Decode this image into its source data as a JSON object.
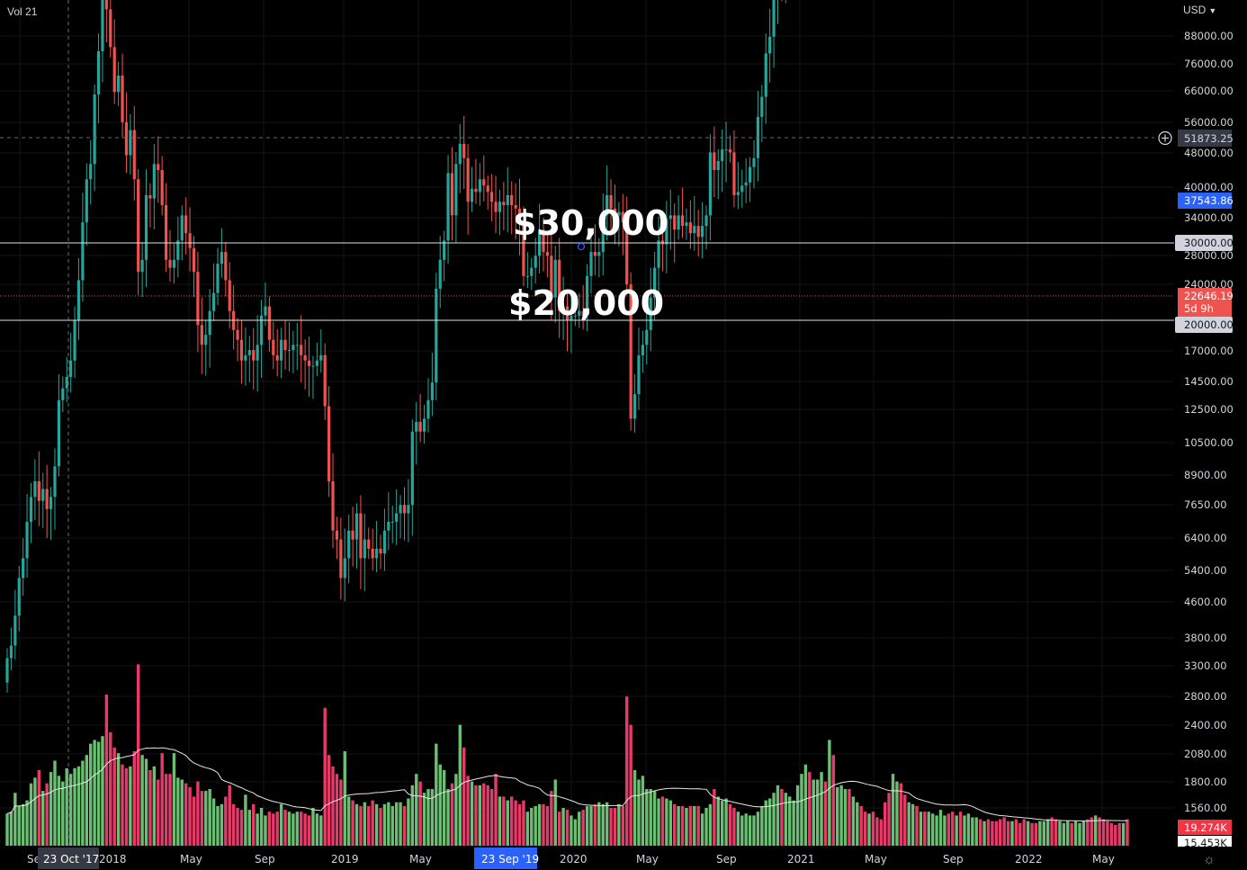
{
  "header": {
    "indicator_label": "Vol 21",
    "currency": "USD",
    "currency_chevron_icon": "chevron-down-icon"
  },
  "price_axis_labels": [
    "88000.00",
    "76000.00",
    "66000.00",
    "56000.00",
    "48000.00",
    "40000.00",
    "34000.00",
    "28000.00",
    "24000.00",
    "17000.00",
    "14500.00",
    "12500.00",
    "10500.00",
    "8900.00",
    "7650.00",
    "6400.00",
    "5400.00",
    "4600.00",
    "3800.00",
    "3300.00",
    "2800.00",
    "2400.00",
    "2080.00",
    "1800.00",
    "1560.00"
  ],
  "price_tags": {
    "crosshair": {
      "value": "51873.25",
      "color": "#363a45"
    },
    "prev_close": {
      "value": "37543.86",
      "color": "#2962ff"
    },
    "line_30k": {
      "value": "30000.00",
      "color": "#d1d4dc"
    },
    "last": {
      "value": "22646.19",
      "countdown": "5d 9h",
      "color": "#ef5350"
    },
    "line_20k": {
      "value": "20000.00",
      "color": "#d1d4dc"
    },
    "volume_last": {
      "value": "19.274K",
      "color": "#f23645"
    },
    "volume_ma": {
      "value": "15.453K",
      "color": "#ffffff"
    }
  },
  "annotations": {
    "upper": "$30,000",
    "lower": "$20,000"
  },
  "time_axis_labels": [
    {
      "label": "Se"
    },
    {
      "label": "2018"
    },
    {
      "label": "May"
    },
    {
      "label": "Sep"
    },
    {
      "label": "2019"
    },
    {
      "label": "May"
    },
    {
      "label": "2020"
    },
    {
      "label": "May"
    },
    {
      "label": "Sep"
    },
    {
      "label": "2021"
    },
    {
      "label": "May"
    },
    {
      "label": "Sep"
    },
    {
      "label": "2022"
    },
    {
      "label": "May"
    }
  ],
  "crosshair_time_label": "23 Oct '17",
  "highlight_time_label": "23 Sep '19",
  "colors": {
    "up": "#26a69a",
    "down": "#ef5350",
    "vol_up": "#6bbf73",
    "vol_down": "#e8396b",
    "background": "#000000"
  },
  "chart_data": {
    "type": "candlestick",
    "interval": "1W",
    "y_scale": "log",
    "ylim": [
      1450,
      100000
    ],
    "horizontal_lines": [
      30000,
      20000
    ],
    "series": [
      {
        "name": "",
        "close": [
          2600,
          2700,
          2950,
          3300,
          3500,
          3900,
          4200,
          4400,
          4150,
          4300,
          4050,
          4200,
          4600,
          5600,
          5800,
          6000,
          6300,
          7100,
          8000,
          9500,
          10800,
          11300,
          13900,
          15800,
          18500,
          17900,
          16000,
          14000,
          14700,
          12800,
          11600,
          12500,
          10800,
          8200,
          8500,
          10300,
          10200,
          11300,
          11100,
          10000,
          8500,
          8300,
          8500,
          9000,
          9700,
          9200,
          8800,
          8200,
          7000,
          6600,
          6800,
          7300,
          7700,
          8400,
          8700,
          8000,
          7300,
          6900,
          6700,
          6300,
          6400,
          6500,
          6300,
          6600,
          7200,
          7400,
          6700,
          6400,
          6300,
          6700,
          6500,
          6500,
          6600,
          6600,
          6400,
          6300,
          6200,
          6200,
          6300,
          6400,
          5500,
          4400,
          3800,
          3700,
          3300,
          3500,
          3800,
          3700,
          4000,
          3500,
          3700,
          3600,
          3500,
          3600,
          3550,
          3800,
          3900,
          3900,
          4000,
          4100,
          4000,
          4100,
          5100,
          5250,
          5100,
          5300,
          5600,
          5900,
          7800,
          8500,
          9000,
          11000,
          9700,
          11300,
          12000,
          11500,
          10100,
          10500,
          10400,
          10800,
          10600,
          10400,
          10100,
          9800,
          10100,
          10000,
          10300,
          10000,
          9900,
          9500,
          8100,
          8100,
          8300,
          8600,
          9300,
          8700,
          8600,
          7600,
          8500,
          7300,
          7400,
          7100,
          7200,
          7200,
          7300,
          7200,
          8100,
          8700,
          8600,
          8700,
          9700,
          10300,
          9900,
          9700,
          9800,
          9500,
          7900,
          5300,
          5700,
          6400,
          6600,
          6900,
          7600,
          8300,
          9000,
          8900,
          9600,
          9700,
          9300,
          9700,
          9400,
          9500,
          9200,
          9400,
          9100,
          9400,
          9700,
          11700,
          11100,
          11400,
          11800,
          11800,
          11700,
          10300,
          10400,
          10600,
          10700,
          11200,
          11500,
          13000,
          13800,
          15700,
          16500,
          18900,
          19200,
          18900,
          19300,
          23400,
          26400,
          29000,
          32500,
          35000,
          33000,
          36000,
          39000,
          48000,
          45000,
          51000,
          49000,
          57000,
          58000,
          58000,
          57000,
          58000,
          59500,
          56000,
          51000,
          57000,
          49000,
          47000,
          37000,
          35500,
          34500,
          35500,
          36000,
          35000,
          32000,
          34000,
          36000,
          33000,
          34000,
          32000,
          40000,
          44000,
          46000,
          49000,
          49000,
          48000,
          47000,
          51000,
          45000,
          47000,
          55000,
          61000,
          62000,
          60000,
          66000,
          64000,
          63000,
          61000,
          57000,
          55000,
          49000,
          51000,
          48000,
          47000,
          42000,
          43000,
          42000,
          35000,
          36000,
          42000,
          44000,
          43000,
          39000,
          39000,
          39000,
          42000,
          41000,
          44000,
          46000,
          47000,
          42000,
          40000,
          40000,
          39000,
          36000,
          31000,
          30000,
          29500,
          29000,
          29500,
          22600
        ]
      },
      {
        "name": "Vol 21",
        "values": [
          8.5,
          9.0,
          14.0,
          10.5,
          11.0,
          12.0,
          16.5,
          18.0,
          20.0,
          14.5,
          16.5,
          19.5,
          22.5,
          18.5,
          17.0,
          20.5,
          19.0,
          20.5,
          21.0,
          22.5,
          24.0,
          27.0,
          28.0,
          27.5,
          29.0,
          40.0,
          30.0,
          26.0,
          24.5,
          21.5,
          20.5,
          21.0,
          25.0,
          48.0,
          24.0,
          23.0,
          20.0,
          21.0,
          17.5,
          24.5,
          19.0,
          19.0,
          24.5,
          18.0,
          17.5,
          16.5,
          15.5,
          13.0,
          17.0,
          14.5,
          14.5,
          15.0,
          12.5,
          10.5,
          11.0,
          13.0,
          16.0,
          11.0,
          10.0,
          9.5,
          13.5,
          9.5,
          11.0,
          8.5,
          10.0,
          8.0,
          9.0,
          8.5,
          9.0,
          11.0,
          9.5,
          9.0,
          8.5,
          9.0,
          9.0,
          8.5,
          8.0,
          10.0,
          8.5,
          8.0,
          36.5,
          24.0,
          21.0,
          19.0,
          17.5,
          25.0,
          13.0,
          12.0,
          11.0,
          10.5,
          11.5,
          10.5,
          12.0,
          11.0,
          10.0,
          11.0,
          11.5,
          10.5,
          11.5,
          11.5,
          10.5,
          12.5,
          16.0,
          19.0,
          17.0,
          14.0,
          15.0,
          15.0,
          27.0,
          21.5,
          20.0,
          15.0,
          16.5,
          19.0,
          32.0,
          26.0,
          18.5,
          17.0,
          16.0,
          16.0,
          16.5,
          16.0,
          15.0,
          19.0,
          13.0,
          13.0,
          12.0,
          13.0,
          12.0,
          11.0,
          12.0,
          9.0,
          10.0,
          10.5,
          11.0,
          11.0,
          10.5,
          14.5,
          17.5,
          9.0,
          10.0,
          9.5,
          8.0,
          7.0,
          9.0,
          9.5,
          10.5,
          10.5,
          11.0,
          11.5,
          11.0,
          11.5,
          10.0,
          10.0,
          11.0,
          10.5,
          39.5,
          32.0,
          20.0,
          17.5,
          18.5,
          15.0,
          15.0,
          14.5,
          12.5,
          13.0,
          12.5,
          12.0,
          11.0,
          10.5,
          10.5,
          10.0,
          10.5,
          10.5,
          10.5,
          8.5,
          10.0,
          11.0,
          15.0,
          13.0,
          12.0,
          12.5,
          11.0,
          10.0,
          9.0,
          8.0,
          8.5,
          8.0,
          8.0,
          9.0,
          10.5,
          12.0,
          12.5,
          14.0,
          16.0,
          15.0,
          14.0,
          13.0,
          12.0,
          16.0,
          19.0,
          21.5,
          19.5,
          17.5,
          17.5,
          19.5,
          17.0,
          28.0,
          24.0,
          15.5,
          16.0,
          15.0,
          15.0,
          13.0,
          11.5,
          10.5,
          9.0,
          8.5,
          9.0,
          7.5,
          7.0,
          11.5,
          14.0,
          19.0,
          17.0,
          16.5,
          13.5,
          11.5,
          11.0,
          10.5,
          9.0,
          9.0,
          9.0,
          8.5,
          8.0,
          9.5,
          8.0,
          8.5,
          9.0,
          8.0,
          9.0,
          8.0,
          8.5,
          7.5,
          7.5,
          7.0,
          6.5,
          7.0,
          6.5,
          6.5,
          7.0,
          7.5,
          6.5,
          6.5,
          7.0,
          6.0,
          7.0,
          6.5,
          6.0,
          6.0,
          6.5,
          6.5,
          7.0,
          7.5,
          7.0,
          6.5,
          6.0,
          6.5,
          6.0,
          6.5,
          6.0,
          6.5,
          7.0,
          7.5,
          8.0,
          7.5,
          7.0,
          6.5,
          6.0,
          5.5,
          6.0,
          6.0,
          7.0,
          6.5,
          6.5,
          20.0,
          7.0,
          6.5,
          6.5,
          6.0,
          5.5,
          6.0
        ]
      }
    ]
  }
}
